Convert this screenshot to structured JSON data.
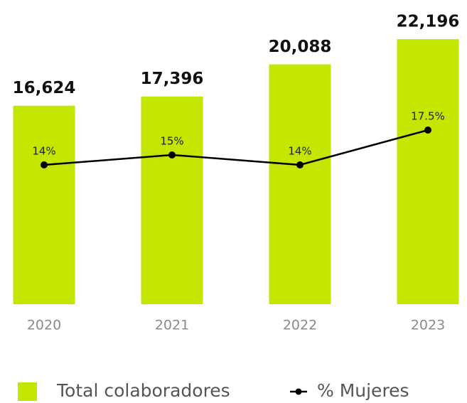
{
  "chart_data": {
    "type": "bar",
    "categories": [
      "2020",
      "2021",
      "2022",
      "2023"
    ],
    "series": [
      {
        "name": "Total colaboradores",
        "type": "bar",
        "color": "#c5e600",
        "values": [
          16624,
          17396,
          20088,
          22196
        ],
        "value_labels": [
          "16,624",
          "17,396",
          "20,088",
          "22,196"
        ]
      },
      {
        "name": "% Mujeres",
        "type": "line",
        "axis": "y2",
        "color": "#000000",
        "values": [
          14,
          15,
          14,
          17.5
        ],
        "value_labels": [
          "14%",
          "15%",
          "14%",
          "17.5%"
        ]
      }
    ],
    "ylim": [
      0,
      25000
    ],
    "y2lim": [
      0,
      30
    ],
    "grid": false
  }
}
